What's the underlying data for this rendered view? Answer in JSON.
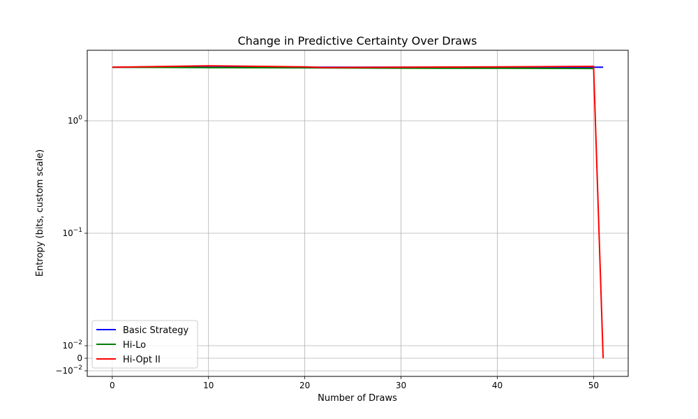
{
  "chart_data": {
    "type": "line",
    "title": "Change in Predictive Certainty Over Draws",
    "xlabel": "Number of Draws",
    "ylabel": "Entropy (bits, custom scale)",
    "y_scale": "symlog",
    "xlim": [
      -2.6,
      53.6
    ],
    "grid": true,
    "legend_position": "lower left",
    "x_ticks": [
      "0",
      "10",
      "20",
      "30",
      "40",
      "50"
    ],
    "x_tick_values": [
      0,
      10,
      20,
      30,
      40,
      50
    ],
    "y_tick_values": [
      -0.01,
      0,
      0.01,
      0.1,
      1
    ],
    "y_tick_labels": [
      {
        "base": "−10",
        "exp": "−2"
      },
      {
        "base": "0",
        "exp": ""
      },
      {
        "base": "10",
        "exp": "−2"
      },
      {
        "base": "10",
        "exp": "−1"
      },
      {
        "base": "10",
        "exp": "0"
      }
    ],
    "series": [
      {
        "name": "Basic Strategy",
        "color": "#0000ff",
        "x": [
          0,
          10,
          20,
          30,
          40,
          50,
          51
        ],
        "y": [
          3.0,
          3.0,
          3.0,
          3.0,
          3.0,
          3.0,
          3.0
        ]
      },
      {
        "name": "Hi-Lo",
        "color": "#008000",
        "x": [
          0,
          10,
          20,
          30,
          40,
          50
        ],
        "y": [
          3.0,
          2.97,
          2.96,
          2.94,
          2.93,
          2.92
        ]
      },
      {
        "name": "Hi-Opt II",
        "color": "#ff0000",
        "x": [
          0,
          10,
          20,
          22,
          30,
          40,
          50,
          51
        ],
        "y": [
          3.0,
          3.08,
          3.02,
          2.98,
          3.0,
          3.02,
          3.05,
          0
        ]
      }
    ]
  }
}
